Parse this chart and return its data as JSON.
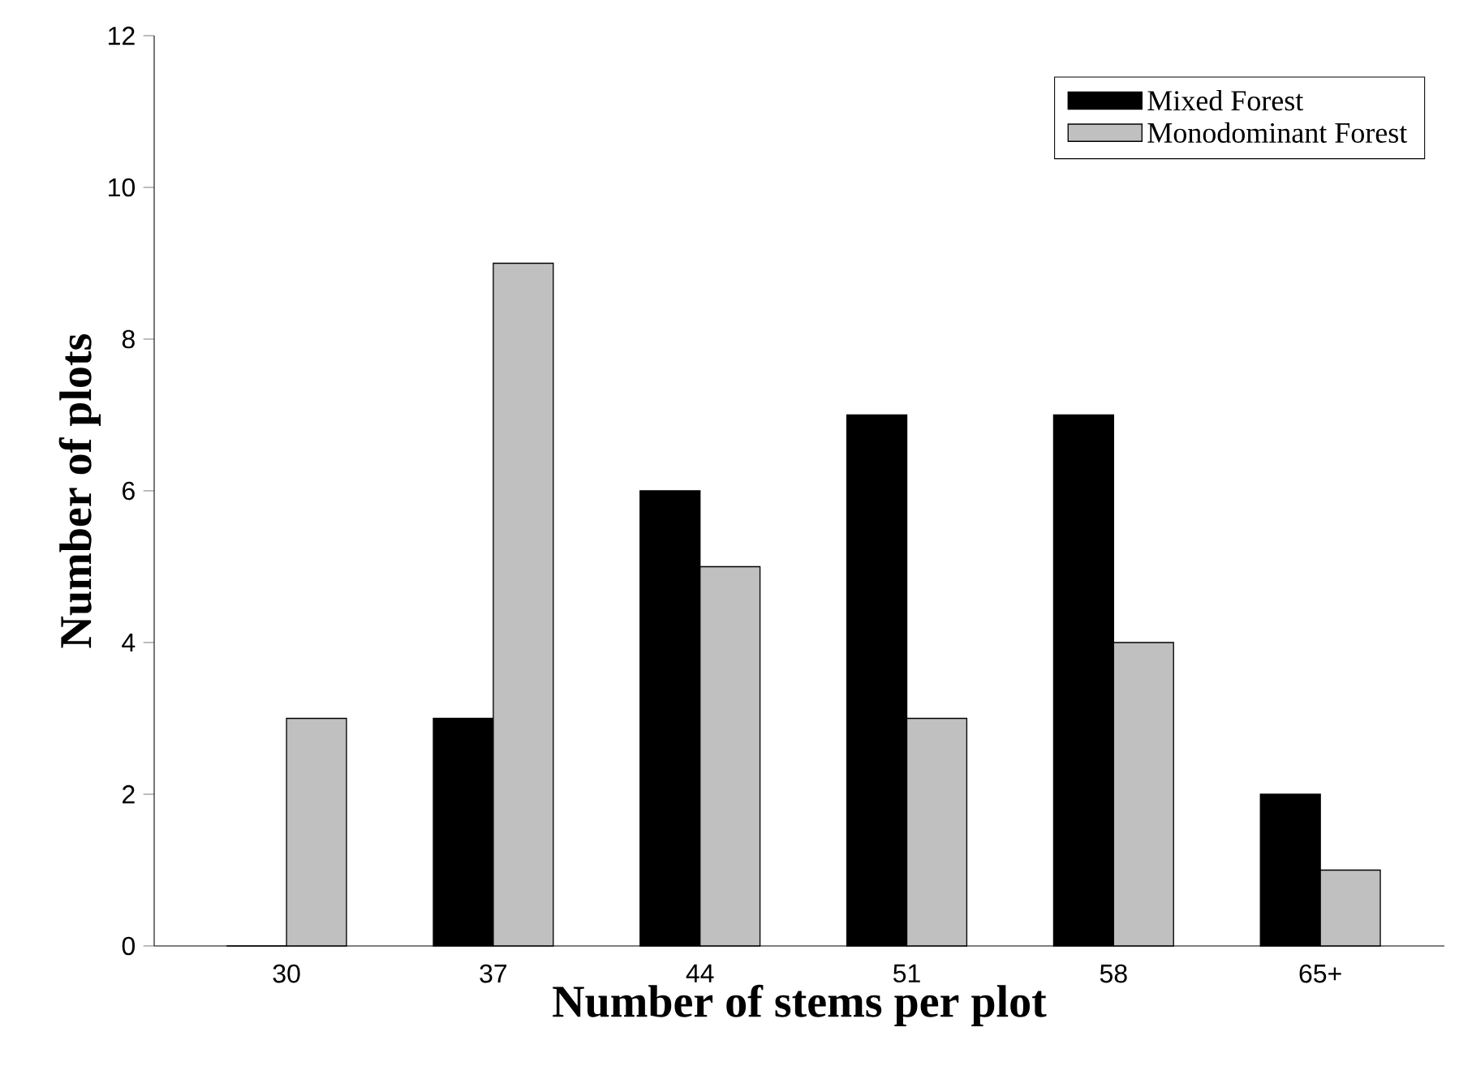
{
  "chart_data": {
    "type": "bar",
    "xlabel": "Number of stems per plot",
    "ylabel": "Number of plots",
    "categories": [
      "30",
      "37",
      "44",
      "51",
      "58",
      "65+"
    ],
    "series": [
      {
        "name": "Mixed Forest",
        "color": "#000000",
        "values": [
          0,
          3,
          6,
          7,
          7,
          2
        ]
      },
      {
        "name": "Monodominant Forest",
        "color": "#c0c0c0",
        "values": [
          3,
          9,
          5,
          3,
          4,
          1
        ]
      }
    ],
    "ylim": [
      0,
      12
    ],
    "yticks": [
      0,
      2,
      4,
      6,
      8,
      10,
      12
    ],
    "legend": "top right"
  }
}
